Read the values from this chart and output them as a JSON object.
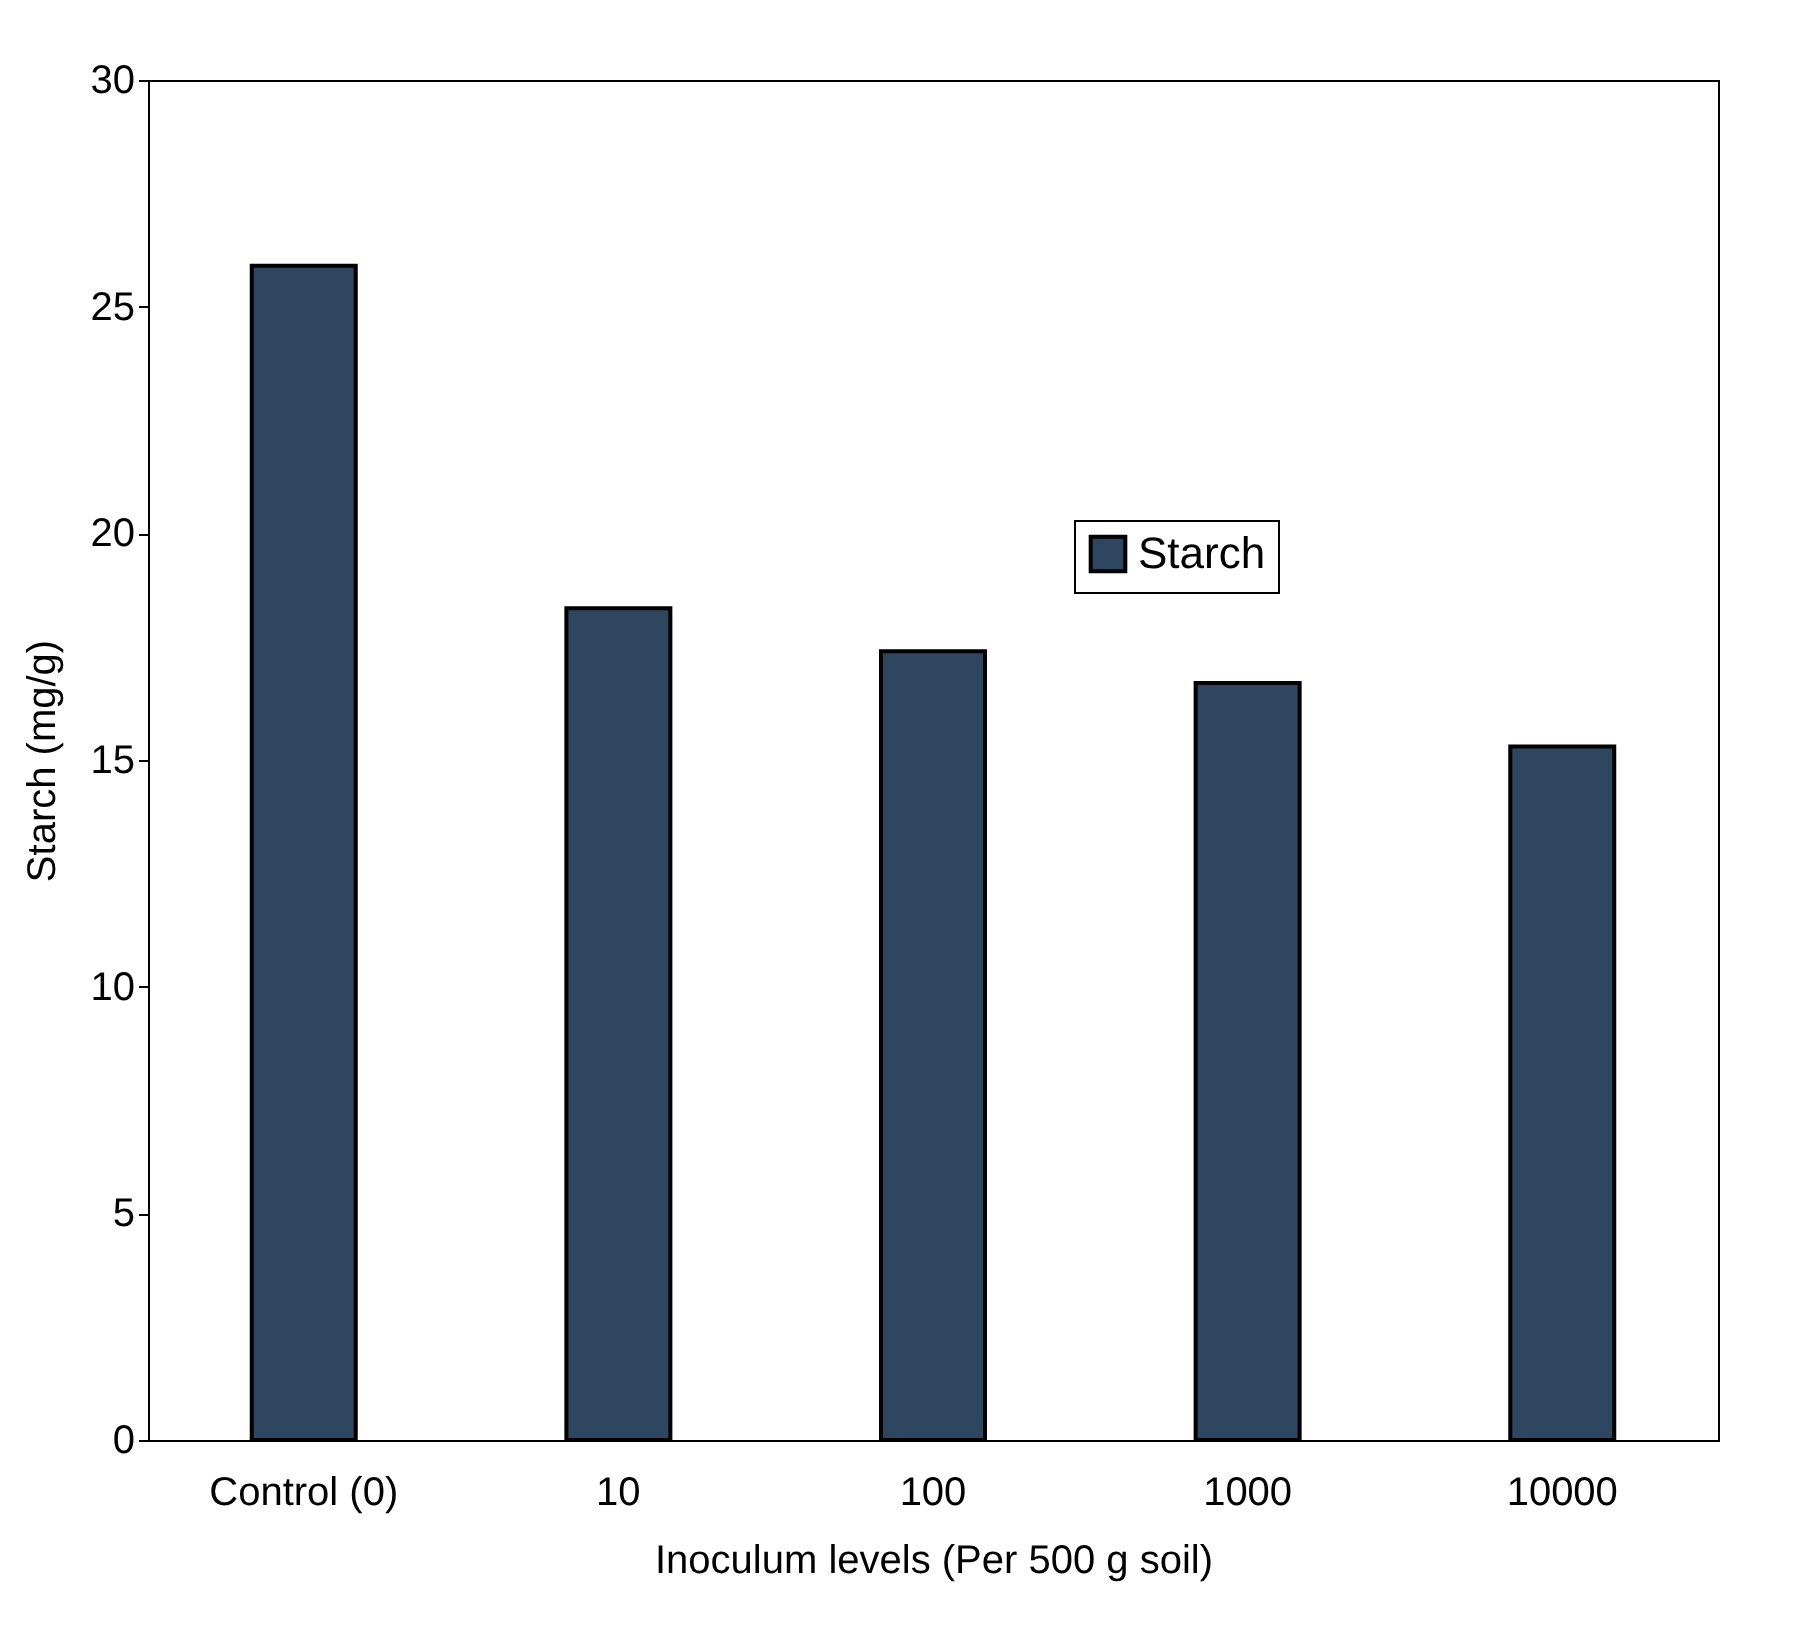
{
  "chart_data": {
    "type": "bar",
    "xlabel": "Inoculum levels (Per 500 g soil)",
    "ylabel": "Starch (mg/g)",
    "categories": [
      "Control (0)",
      "10",
      "100",
      "1000",
      "10000"
    ],
    "series": [
      {
        "name": "Starch",
        "color": "#2f4660",
        "values": [
          25.9,
          18.35,
          17.4,
          16.7,
          15.3
        ]
      }
    ],
    "ylim": [
      0,
      30
    ],
    "yticks": [
      0,
      5,
      10,
      15,
      20,
      25,
      30
    ],
    "grid": false,
    "legend": "top right"
  }
}
